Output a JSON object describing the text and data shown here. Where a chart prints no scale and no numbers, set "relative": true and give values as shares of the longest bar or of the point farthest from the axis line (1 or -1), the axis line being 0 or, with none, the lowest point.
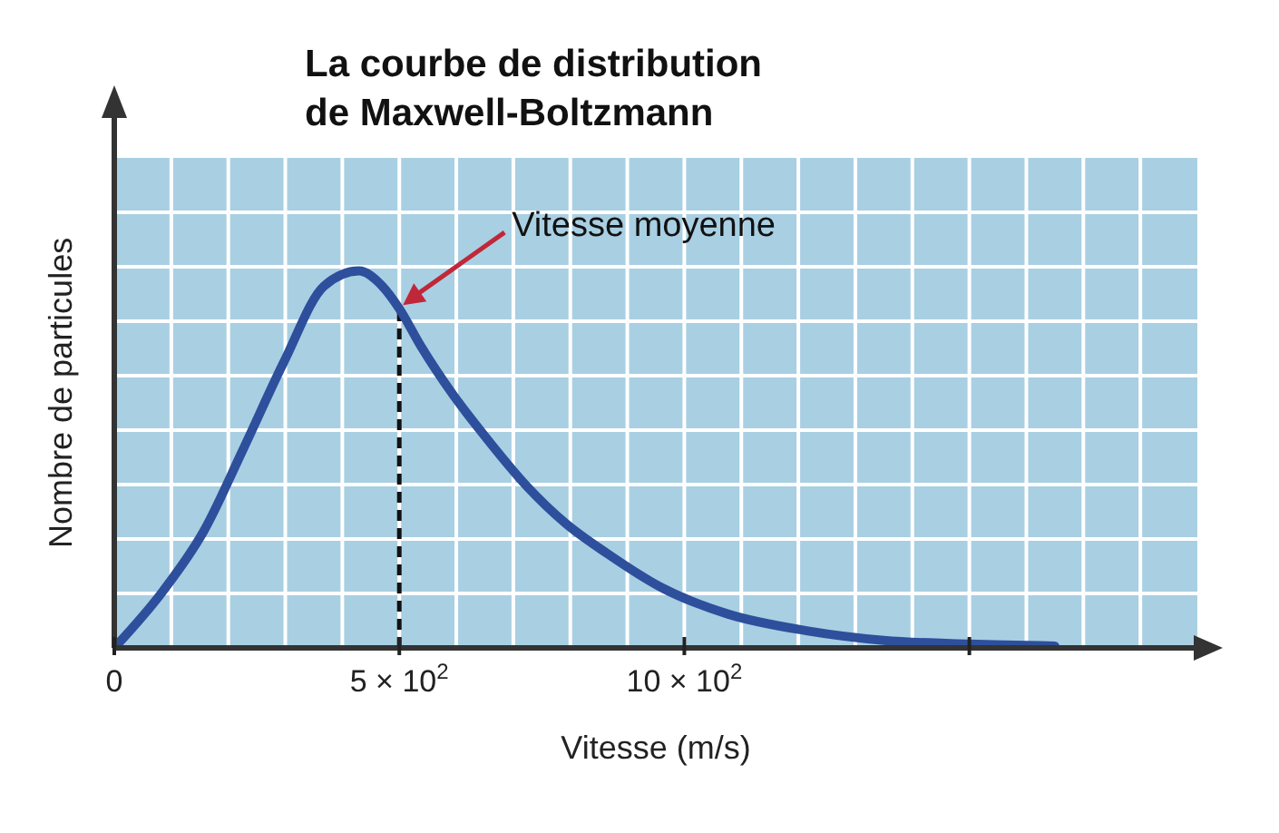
{
  "chart_data": {
    "type": "line",
    "title": "La courbe de distribution de Maxwell-Boltzmann",
    "xlabel": "Vitesse (m/s)",
    "ylabel": "Nombre de particules",
    "relative": true,
    "x": [
      0,
      85,
      157,
      227,
      298,
      368,
      429,
      470,
      500,
      538,
      595,
      651,
      723,
      792,
      865,
      960,
      1076,
      1217,
      1350,
      1500,
      1650
    ],
    "series": [
      {
        "color": "#2e4f9c",
        "values": [
          0,
          0.15,
          0.31,
          0.53,
          0.76,
          0.96,
          1,
          0.96,
          0.9,
          0.8,
          0.67,
          0.56,
          0.43,
          0.33,
          0.25,
          0.16,
          0.09,
          0.045,
          0.02,
          0.01,
          0.005
        ]
      }
    ],
    "xlim": [
      0,
      1900
    ],
    "xticks": [
      0,
      {
        "value": 500,
        "label": "5 × 10$^{2}$"
      },
      {
        "value": 1000,
        "label": "10 × 10$^{2}$"
      },
      {
        "value": 1500,
        "label": null
      }
    ],
    "grid": true,
    "marker": "none",
    "line_style": "solid",
    "ref_lines": [
      {
        "axis": "x",
        "value": 500,
        "line_style": "dashed",
        "color": "#111111"
      }
    ],
    "annotations": [
      "Vitesse moyenne"
    ]
  }
}
